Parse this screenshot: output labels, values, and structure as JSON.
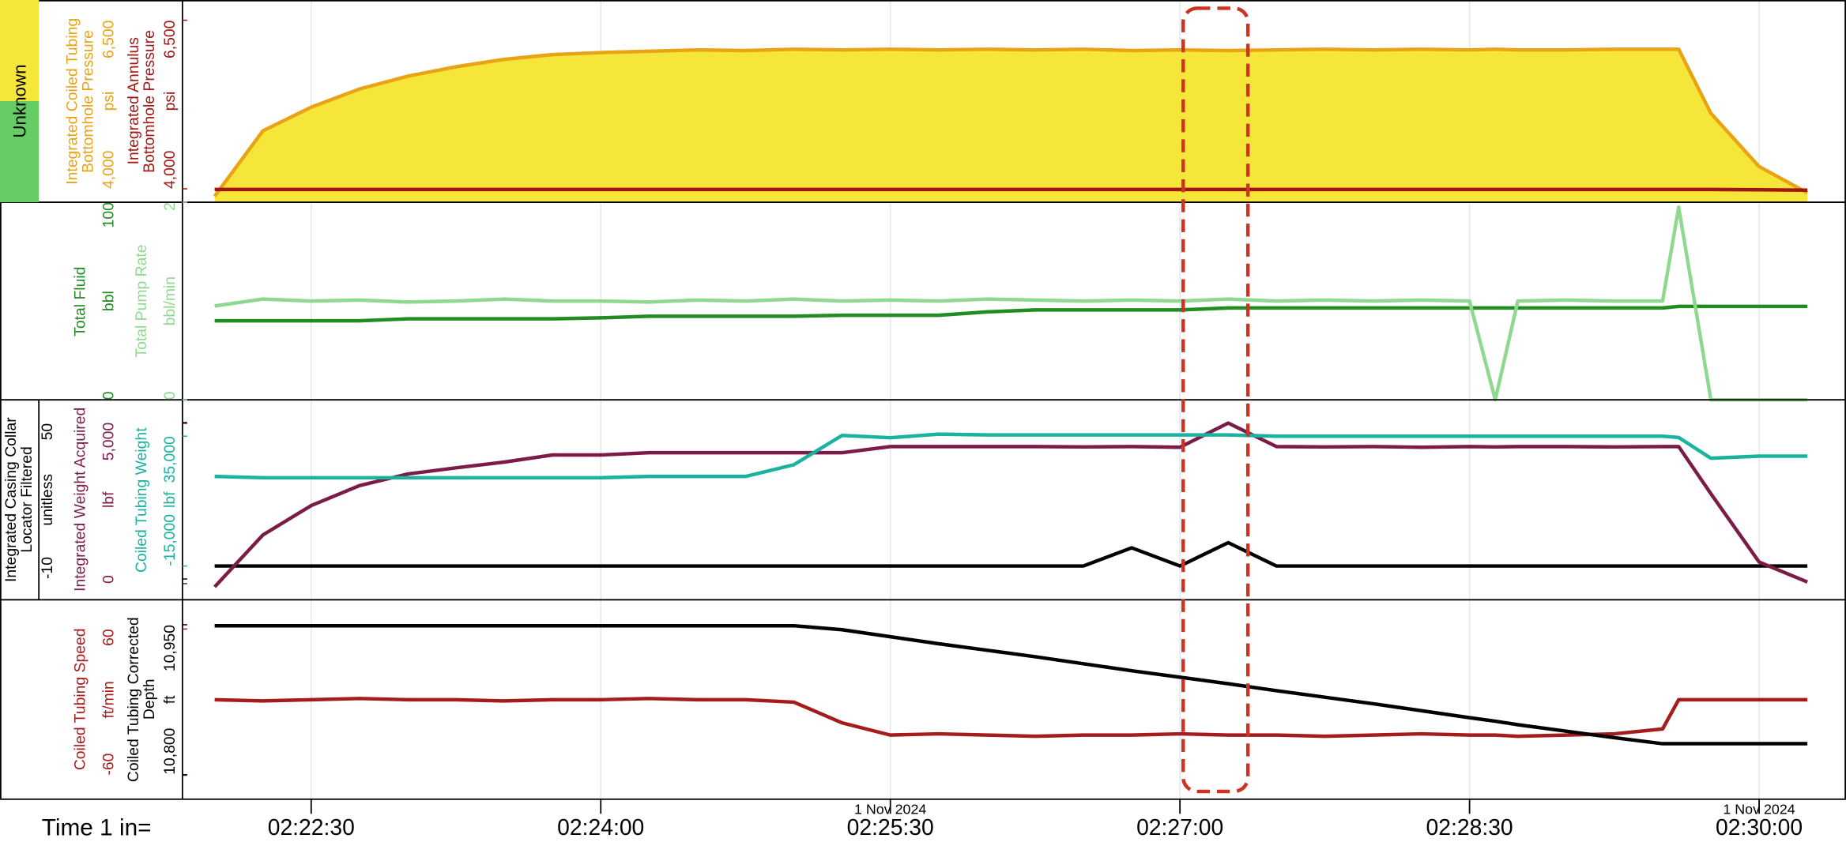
{
  "chart_data": {
    "type": "log",
    "status_label": "Unknown",
    "time_label": "Time 1 in=",
    "x": [
      "02:22:00",
      "02:22:15",
      "02:22:30",
      "02:22:45",
      "02:23:00",
      "02:23:15",
      "02:23:30",
      "02:23:45",
      "02:24:00",
      "02:24:15",
      "02:24:30",
      "02:24:45",
      "02:25:00",
      "02:25:15",
      "02:25:30",
      "02:25:45",
      "02:26:00",
      "02:26:15",
      "02:26:30",
      "02:26:45",
      "02:27:00",
      "02:27:15",
      "02:27:30",
      "02:27:45",
      "02:28:00",
      "02:28:15",
      "02:28:30",
      "02:28:38",
      "02:28:45",
      "02:29:00",
      "02:29:15",
      "02:29:30",
      "02:29:35",
      "02:29:45",
      "02:30:00",
      "02:30:15"
    ],
    "xlim": [
      "02:21:50",
      "02:30:27"
    ],
    "xticks": [
      "02:22:30",
      "02:24:00",
      "02:25:30",
      "02:27:00",
      "02:28:30",
      "02:30:00"
    ],
    "date_labels": [
      {
        "x": "02:25:30",
        "label": "1 Nov 2024"
      },
      {
        "x": "02:30:00",
        "label": "1 Nov 2024"
      }
    ],
    "tracks": [
      {
        "series": [
          {
            "name": "Integrated Coiled Tubing Bottomhole Pressure",
            "unit": "psi",
            "color": "#e8a317",
            "fill": "#f7e63a",
            "ylim": [
              3800,
              6800
            ],
            "yticks": [
              {
                "value": 4000,
                "label": "4,000"
              },
              {
                "value": 6500,
                "label": "6,500"
              }
            ],
            "values": [
              3890,
              4860,
              5210,
              5480,
              5670,
              5810,
              5920,
              5990,
              6020,
              6040,
              6060,
              6050,
              6070,
              6060,
              6070,
              6060,
              6070,
              6060,
              6070,
              6050,
              6060,
              6050,
              6060,
              6070,
              6060,
              6070,
              6060,
              6070,
              6060,
              6060,
              6070,
              6070,
              6070,
              5120,
              4330,
              3940
            ]
          },
          {
            "name": "Integrated Annulus Bottomhole Pressure",
            "unit": "psi",
            "color": "#a31515",
            "ylim": [
              3800,
              6800
            ],
            "yticks": [
              {
                "value": 4000,
                "label": "4,000"
              },
              {
                "value": 6500,
                "label": "6,500"
              }
            ],
            "values": [
              3990,
              3990,
              3990,
              3990,
              3990,
              3990,
              3990,
              3990,
              3990,
              3990,
              3990,
              3990,
              3990,
              3990,
              3990,
              3990,
              3990,
              3990,
              3990,
              3990,
              3990,
              3990,
              3990,
              3990,
              3990,
              3990,
              3990,
              3990,
              3990,
              3990,
              3990,
              3990,
              3990,
              3990,
              3985,
              3980
            ]
          }
        ]
      },
      {
        "series": [
          {
            "name": "Total Fluid",
            "unit": "bbl",
            "color": "#228b22",
            "ylim": [
              0,
              100
            ],
            "yticks": [
              0,
              100
            ],
            "values": [
              40,
              40,
              40,
              40,
              41,
              41,
              41,
              41,
              41.5,
              42.3,
              42.3,
              42.3,
              42.3,
              42.8,
              42.8,
              42.8,
              44.5,
              45.5,
              45.5,
              45.5,
              45.5,
              46.5,
              46.5,
              46.5,
              46.5,
              46.5,
              46.5,
              46.5,
              46.5,
              46.5,
              46.5,
              46.5,
              47.3,
              47.3,
              47.3,
              47.3
            ]
          },
          {
            "name": "Total Pump Rate",
            "unit": "bbl/min",
            "color": "#8fd98f",
            "ylim": [
              0,
              2
            ],
            "yticks": [
              0,
              2
            ],
            "values": [
              0.95,
              1.02,
              1.0,
              1.01,
              0.99,
              1.0,
              1.02,
              1.0,
              1.0,
              0.99,
              1.01,
              1.0,
              1.02,
              1.0,
              1.01,
              1.0,
              1.02,
              1.01,
              1.0,
              1.01,
              1.0,
              1.02,
              1.0,
              1.01,
              1.0,
              1.01,
              1.0,
              0,
              1.0,
              1.01,
              1.0,
              1.0,
              1.95,
              0,
              0,
              0
            ]
          }
        ]
      },
      {
        "series": [
          {
            "name": "Integrated Casing Collar Locator Filtered",
            "unit": "unitless",
            "color": "#000000",
            "ylim": [
              -18,
              59
            ],
            "yticks": [
              -10,
              50
            ],
            "values": [
              -5,
              -5,
              -5,
              -5,
              -5,
              -5,
              -5,
              -5,
              -5,
              -5,
              -5,
              -5,
              -5,
              -5,
              -5,
              -5,
              -5,
              -5,
              -5,
              2,
              -5,
              4,
              -5,
              -5,
              -5,
              -5,
              -5,
              -5,
              -5,
              -5,
              -5,
              -5,
              -5,
              -5,
              -5,
              -5
            ]
          },
          {
            "name": "Integrated Weight Acquired",
            "unit": "lbf",
            "color": "#7b1c47",
            "ylim": [
              -500,
              5700
            ],
            "yticks": [
              0,
              {
                "value": 5000,
                "label": "5,000"
              }
            ],
            "values": [
              -100,
              1510,
              2420,
              3040,
              3400,
              3590,
              3770,
              3990,
              3990,
              4060,
              4060,
              4060,
              4060,
              4060,
              4250,
              4250,
              4250,
              4250,
              4240,
              4250,
              4230,
              4980,
              4250,
              4240,
              4250,
              4230,
              4250,
              4240,
              4250,
              4250,
              4240,
              4250,
              4250,
              2790,
              670,
              50
            ]
          },
          {
            "name": "Coiled Tubing Weight",
            "unit": "lbf",
            "color": "#1ab3a0",
            "ylim": [
              -28000,
              49000
            ],
            "yticks": [
              {
                "value": -15000,
                "label": "-15,000"
              },
              {
                "value": 35000,
                "label": "35,000"
              }
            ],
            "values": [
              19500,
              19000,
              19000,
              19000,
              19000,
              19000,
              19000,
              19000,
              19000,
              19500,
              19500,
              19500,
              24000,
              35300,
              34400,
              35800,
              35500,
              35500,
              35500,
              35500,
              35500,
              35500,
              35000,
              35000,
              35000,
              35000,
              35000,
              35000,
              35000,
              35000,
              35000,
              35000,
              34500,
              26500,
              27300,
              27300
            ]
          }
        ]
      },
      {
        "series": [
          {
            "name": "Coiled Tubing Speed",
            "unit": "ft/min",
            "color": "#a51c1c",
            "ylim": [
              -80,
              84
            ],
            "yticks": [
              -60,
              60
            ],
            "values": [
              2,
              1,
              2,
              3,
              2,
              2,
              1,
              2,
              2,
              3,
              2,
              2,
              0,
              -17,
              -27,
              -26,
              -27,
              -28,
              -27,
              -27,
              -26,
              -27,
              -27,
              -28,
              -27,
              -26,
              -27,
              -27,
              -28,
              -27,
              -26,
              -22,
              2,
              2,
              2,
              2
            ]
          },
          {
            "name": "Coiled Tubing Corrected Depth",
            "unit": "ft",
            "color": "#000000",
            "ylim": [
              10775,
              10975
            ],
            "yticks": [
              {
                "value": 10800,
                "label": "10,800"
              },
              {
                "value": 10950,
                "label": "10,950"
              }
            ],
            "values": [
              10949,
              10949,
              10949,
              10949,
              10949,
              10949,
              10949,
              10949,
              10949,
              10949,
              10949,
              10949,
              10949,
              10945,
              10938,
              10931,
              10924.5,
              10918,
              10911,
              10904,
              10897.5,
              10891,
              10884,
              10877.5,
              10871,
              10864,
              10857,
              10853.5,
              10850,
              10843.5,
              10837,
              10831,
              10831,
              10831,
              10831,
              10831
            ]
          }
        ]
      }
    ]
  }
}
